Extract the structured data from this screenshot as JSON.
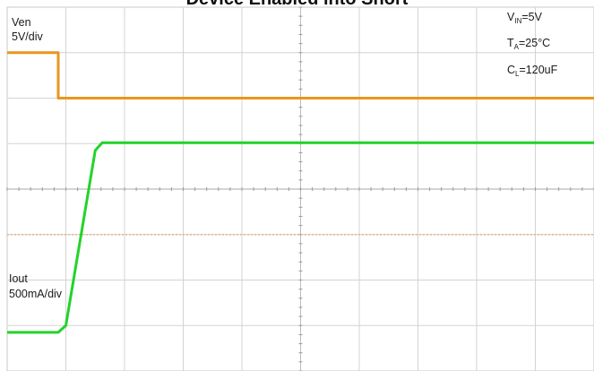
{
  "chart_data": {
    "type": "line",
    "title": "Device Enabled into Short",
    "xlabel": "",
    "ylabel": "",
    "xlim": [
      0,
      10
    ],
    "ylim": [
      0,
      8
    ],
    "grid": true,
    "series": [
      {
        "name": "Ven",
        "scale": "5V/div",
        "color": "#e8961e",
        "x": [
          0,
          0.87,
          0.87,
          10
        ],
        "y": [
          7,
          7,
          6,
          6
        ]
      },
      {
        "name": "Iout",
        "scale": "500mA/div",
        "color": "#22d32a",
        "x": [
          0,
          0.87,
          1.0,
          1.5,
          1.62,
          10
        ],
        "y": [
          0.85,
          0.85,
          1.0,
          4.85,
          5.02,
          5.02
        ]
      }
    ],
    "reference_line": {
      "y": 3,
      "color": "#e2b48e"
    },
    "labels": {
      "ven_name": "Ven",
      "ven_scale": "5V/div",
      "iout_name": "Iout",
      "iout_scale": "500mA/div"
    },
    "conditions": [
      {
        "main": "V",
        "sub": "IN",
        "rest": "=5V"
      },
      {
        "main": "T",
        "sub": "A",
        "rest": "=25°C"
      },
      {
        "main": "C",
        "sub": "L",
        "rest": "=120uF"
      }
    ]
  }
}
